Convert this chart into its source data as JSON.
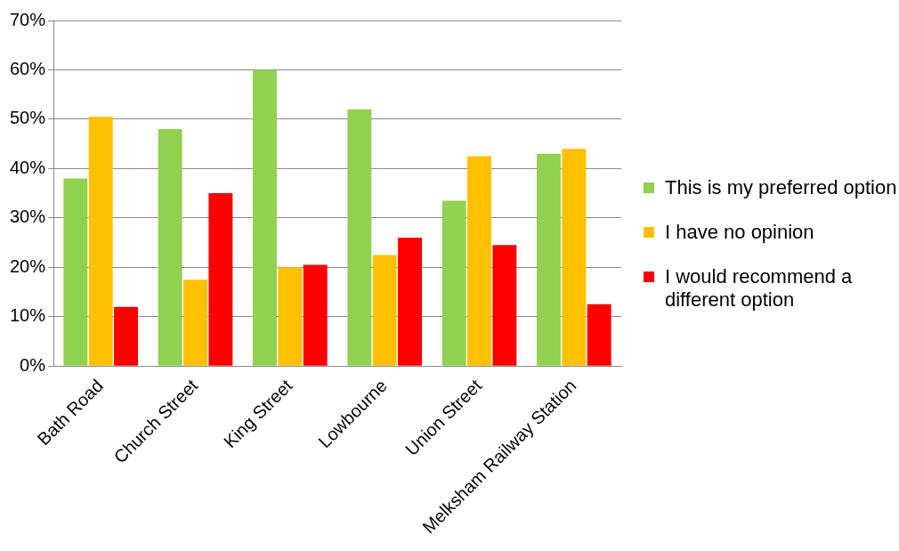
{
  "chart_data": {
    "type": "bar",
    "categories": [
      "Bath Road",
      "Church Street",
      "King Street",
      "Lowbourne",
      "Union Street",
      "Melksham Railway Station"
    ],
    "series": [
      {
        "name": "This is my preferred option",
        "color": "#92d050",
        "values": [
          38,
          48,
          60,
          52,
          33.5,
          43
        ]
      },
      {
        "name": "I have no opinion",
        "color": "#ffc000",
        "values": [
          50.5,
          17.5,
          20,
          22.5,
          42.5,
          44
        ]
      },
      {
        "name": "I would recommend a different option",
        "color": "#ff0000",
        "values": [
          12,
          35,
          20.5,
          26,
          24.5,
          12.5
        ]
      }
    ],
    "ylim": [
      0,
      70
    ],
    "yticks": [
      {
        "value": 0,
        "label": "0%"
      },
      {
        "value": 10,
        "label": "10%"
      },
      {
        "value": 20,
        "label": "20%"
      },
      {
        "value": 30,
        "label": "30%"
      },
      {
        "value": 40,
        "label": "40%"
      },
      {
        "value": 50,
        "label": "50%"
      },
      {
        "value": 60,
        "label": "60%"
      },
      {
        "value": 70,
        "label": "70%"
      }
    ],
    "grid": "y",
    "legend": "right"
  }
}
